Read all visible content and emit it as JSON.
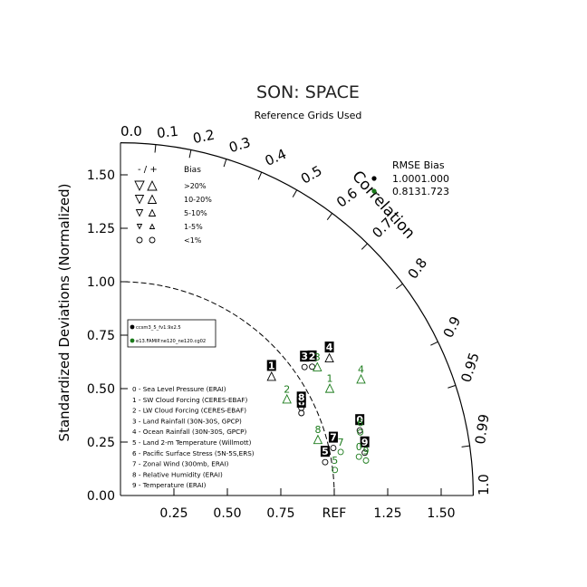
{
  "title": "SON: SPACE",
  "subtitle": "Reference Grids Used",
  "ylabel": "Standardized Deviations (Normalized)",
  "corr_label": "Correlation",
  "ref_label": "REF",
  "colors": {
    "case1": "#000000",
    "case2": "#1a7a1a"
  },
  "bias_legend": {
    "header_symbols": "- / +",
    "header_label": "Bias",
    "rows": [
      {
        "label": ">20%",
        "shape": "triangle",
        "size": "xl"
      },
      {
        "label": "10-20%",
        "shape": "triangle",
        "size": "l"
      },
      {
        "label": "5-10%",
        "shape": "triangle",
        "size": "m"
      },
      {
        "label": "1-5%",
        "shape": "triangle",
        "size": "s"
      },
      {
        "label": "<1%",
        "shape": "circle",
        "size": "m"
      }
    ]
  },
  "stats": {
    "header": "RMSE Bias",
    "rows": [
      {
        "text": "1.0001.000",
        "color": "#000000"
      },
      {
        "text": "0.8131.723",
        "color": "#1a7a1a"
      }
    ]
  },
  "case_legend": [
    {
      "label": "ccsm3_5_fv1.9x2.5",
      "color": "#000000"
    },
    {
      "label": "e13.FAMIP.ne120_ne120.cg02",
      "color": "#1a7a1a"
    }
  ],
  "variables": [
    "0 - Sea Level Pressure (ERAI)",
    "1 - SW Cloud Forcing (CERES-EBAF)",
    "2 - LW Cloud Forcing (CERES-EBAF)",
    "3 - Land Rainfall (30N-30S, GPCP)",
    "4 - Ocean Rainfall (30N-30S, GPCP)",
    "5 - Land 2-m Temperature (Willmott)",
    "6 - Pacific Surface Stress (5N-5S,ERS)",
    "7 - Zonal Wind (300mb, ERAI)",
    "8 - Relative Humidity (ERAI)",
    "9 - Temperature (ERAI)"
  ],
  "chart_data": {
    "type": "taylor",
    "std_ticks": [
      "0.00",
      "0.25",
      "0.50",
      "0.75",
      "1.00",
      "1.25",
      "1.50"
    ],
    "x_ticks": [
      "0.25",
      "0.50",
      "0.75",
      "REF",
      "1.25",
      "1.50"
    ],
    "x_tick_values": [
      0.25,
      0.5,
      0.75,
      1.0,
      1.25,
      1.5
    ],
    "corr_ticks": [
      "0.0",
      "0.1",
      "0.2",
      "0.3",
      "0.4",
      "0.5",
      "0.6",
      "0.7",
      "0.8",
      "0.9",
      "0.95",
      "0.99",
      "1.0"
    ],
    "corr_tick_values": [
      0.0,
      0.1,
      0.2,
      0.3,
      0.4,
      0.5,
      0.6,
      0.7,
      0.8,
      0.9,
      0.95,
      0.99,
      1.0
    ],
    "max_std": 1.65,
    "ref_std": 1.0,
    "series": [
      {
        "name": "ccsm3_5_fv1.9x2.5",
        "color": "#000000",
        "points": [
          {
            "label": "0",
            "std": 1.16,
            "corr": 0.965,
            "marker": "circle"
          },
          {
            "label": "1",
            "std": 0.9,
            "corr": 0.785,
            "marker": "tri-up"
          },
          {
            "label": "2",
            "std": 1.08,
            "corr": 0.83,
            "marker": "circle"
          },
          {
            "label": "3",
            "std": 1.05,
            "corr": 0.82,
            "marker": "circle"
          },
          {
            "label": "4",
            "std": 1.17,
            "corr": 0.835,
            "marker": "tri-up"
          },
          {
            "label": "5",
            "std": 0.97,
            "corr": 0.987,
            "marker": "circle"
          },
          {
            "label": "6",
            "std": 0.93,
            "corr": 0.91,
            "marker": "circle"
          },
          {
            "label": "7",
            "std": 1.02,
            "corr": 0.976,
            "marker": "circle"
          },
          {
            "label": "8",
            "std": 0.94,
            "corr": 0.9,
            "marker": "circle"
          },
          {
            "label": "9",
            "std": 1.16,
            "corr": 0.985,
            "marker": "circle"
          }
        ]
      },
      {
        "name": "e13.FAMIP.ne120_ne120.cg02",
        "color": "#1a7a1a",
        "points": [
          {
            "label": "0",
            "std": 1.13,
            "corr": 0.987,
            "marker": "circle"
          },
          {
            "label": "1",
            "std": 1.1,
            "corr": 0.89,
            "marker": "tri-up"
          },
          {
            "label": "2",
            "std": 0.9,
            "corr": 0.865,
            "marker": "tri-up"
          },
          {
            "label": "3",
            "std": 1.1,
            "corr": 0.837,
            "marker": "tri-up"
          },
          {
            "label": "4",
            "std": 1.25,
            "corr": 0.9,
            "marker": "tri-up"
          },
          {
            "label": "5",
            "std": 1.01,
            "corr": 0.993,
            "marker": "circle"
          },
          {
            "label": "6",
            "std": 1.16,
            "corr": 0.967,
            "marker": "circle"
          },
          {
            "label": "7",
            "std": 1.05,
            "corr": 0.981,
            "marker": "circle"
          },
          {
            "label": "8",
            "std": 0.96,
            "corr": 0.962,
            "marker": "tri-up"
          },
          {
            "label": "9",
            "std": 1.16,
            "corr": 0.99,
            "marker": "circle"
          }
        ]
      }
    ]
  }
}
